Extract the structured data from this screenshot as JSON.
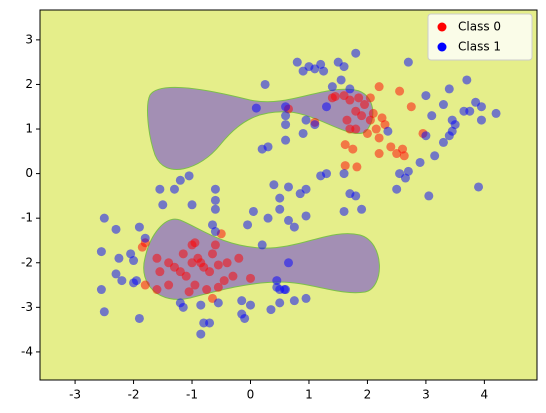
{
  "chart_data": {
    "type": "scatter",
    "xlim": [
      -3.6,
      4.9
    ],
    "ylim": [
      -4.63,
      3.67
    ],
    "xticks": [
      -3,
      -2,
      -1,
      0,
      1,
      2,
      3,
      4
    ],
    "yticks": [
      -4,
      -3,
      -2,
      -1,
      0,
      1,
      2,
      3
    ],
    "legend": "upper right",
    "series": [
      {
        "name": "Class 0",
        "color": "red",
        "x": [
          2.2,
          2.05,
          2.55,
          2.75,
          1.8,
          2.15,
          2.2,
          2.05,
          2.0,
          2.3,
          2.4,
          2.2,
          1.62,
          1.75,
          1.62,
          1.82,
          2.5,
          2.6,
          2.63,
          2.95,
          1.45,
          1.6,
          1.7,
          1.8,
          1.7,
          1.65,
          1.9,
          1.4,
          1.95,
          2.1,
          2.25,
          1.85,
          1.1,
          0.65,
          -1.8,
          -1.85,
          -1.6,
          -1.55,
          -1.4,
          -1.3,
          -1.2,
          -1.0,
          -0.95,
          -0.9,
          -0.85,
          -0.8,
          -0.7,
          -0.65,
          -0.6,
          -0.55,
          -0.5,
          -0.4,
          -0.3,
          -0.2,
          -1.1,
          -1.0,
          -0.95,
          -0.75,
          -0.65,
          -1.05,
          -1.4,
          -1.6,
          -1.8,
          0.0,
          -0.55,
          -1.15,
          -0.45
        ],
        "values": [
          1.95,
          1.7,
          1.85,
          1.5,
          1.0,
          1.0,
          0.8,
          1.2,
          0.9,
          1.1,
          0.6,
          0.45,
          0.65,
          0.55,
          0.18,
          0.15,
          0.45,
          0.55,
          0.4,
          0.9,
          1.73,
          1.75,
          1.65,
          1.4,
          1.0,
          1.2,
          1.3,
          1.7,
          1.55,
          1.35,
          1.25,
          1.7,
          1.15,
          1.45,
          -1.55,
          -1.65,
          -1.9,
          -2.2,
          -2.0,
          -2.1,
          -2.2,
          -1.6,
          -1.55,
          -1.9,
          -2.0,
          -2.1,
          -2.2,
          -1.8,
          -1.6,
          -2.05,
          -1.35,
          -2.0,
          -2.3,
          -1.9,
          -2.3,
          -2.0,
          -2.5,
          -2.6,
          -2.8,
          -2.65,
          -2.5,
          -2.6,
          -2.5,
          -2.35,
          -2.55,
          -1.8,
          -2.4
        ]
      },
      {
        "name": "Class 1",
        "color": "blue",
        "x": [
          0.8,
          1.0,
          0.9,
          1.1,
          1.2,
          1.25,
          1.5,
          1.6,
          1.8,
          1.55,
          1.4,
          1.7,
          0.25,
          0.6,
          0.6,
          0.6,
          0.95,
          1.3,
          1.1,
          0.2,
          0.3,
          0.6,
          0.9,
          1.2,
          1.3,
          1.6,
          1.7,
          1.8,
          1.6,
          1.9,
          2.55,
          2.65,
          2.7,
          2.9,
          3.1,
          3.0,
          3.15,
          3.3,
          3.4,
          3.5,
          3.75,
          3.85,
          3.95,
          3.7,
          3.4,
          3.0,
          2.7,
          4.2,
          3.95,
          3.3,
          3.45,
          3.65,
          3.45,
          3.9,
          3.05,
          2.5,
          2.35,
          0.65,
          0.5,
          0.5,
          0.65,
          0.75,
          0.3,
          0.2,
          0.05,
          -0.05,
          0.85,
          0.95,
          0.95,
          0.4,
          -0.6,
          -0.6,
          -0.65,
          -0.6,
          -0.6,
          -1.3,
          -1.2,
          -1.05,
          -1.0,
          -1.5,
          -1.55,
          -2.5,
          -2.3,
          -1.9,
          -1.8,
          -2.05,
          -2.25,
          -2.55,
          -2.0,
          -2.3,
          -2.2,
          -2.0,
          -2.55,
          -2.5,
          -1.95,
          -1.9,
          -1.2,
          -1.15,
          -0.85,
          -0.8,
          -0.7,
          -0.85,
          -0.1,
          -0.15,
          0.35,
          0.5,
          0.75,
          0.95,
          0.6,
          0.45,
          -0.15,
          0.0,
          -0.55,
          0.1,
          0.65,
          0.45,
          0.5,
          0.58
        ],
        "values": [
          2.5,
          2.4,
          2.3,
          2.35,
          2.45,
          2.3,
          2.5,
          2.4,
          2.7,
          2.1,
          1.95,
          1.9,
          2.0,
          1.5,
          1.3,
          1.1,
          1.2,
          1.5,
          1.1,
          0.55,
          0.6,
          0.75,
          0.9,
          -0.05,
          0.0,
          0.0,
          -0.45,
          -0.5,
          -0.85,
          -0.8,
          0.0,
          -0.1,
          0.05,
          0.25,
          1.3,
          0.85,
          0.4,
          0.7,
          0.85,
          1.1,
          1.4,
          1.6,
          1.2,
          2.1,
          1.9,
          1.75,
          2.5,
          1.35,
          1.5,
          1.55,
          1.2,
          1.4,
          0.95,
          -0.3,
          -0.5,
          -0.35,
          0.95,
          -0.3,
          -0.55,
          -0.8,
          -1.05,
          -1.2,
          -1.0,
          -1.6,
          -0.85,
          -1.15,
          -0.45,
          -0.35,
          -0.95,
          -0.25,
          -0.6,
          -0.8,
          -1.15,
          -1.3,
          -0.35,
          -0.35,
          -0.15,
          -0.05,
          -0.7,
          -0.7,
          -0.35,
          -1.0,
          -1.25,
          -1.2,
          -1.45,
          -1.8,
          -1.9,
          -1.75,
          -1.95,
          -2.25,
          -2.4,
          -2.45,
          -2.6,
          -3.1,
          -2.4,
          -3.25,
          -2.9,
          -3.0,
          -2.95,
          -3.35,
          -3.35,
          -3.6,
          -3.25,
          -3.15,
          -3.05,
          -2.9,
          -2.85,
          -2.8,
          -2.6,
          -2.55,
          -2.85,
          -2.95,
          -2.9,
          1.47,
          -2.0,
          -2.4,
          -2.6,
          -2.6
        ]
      }
    ]
  }
}
